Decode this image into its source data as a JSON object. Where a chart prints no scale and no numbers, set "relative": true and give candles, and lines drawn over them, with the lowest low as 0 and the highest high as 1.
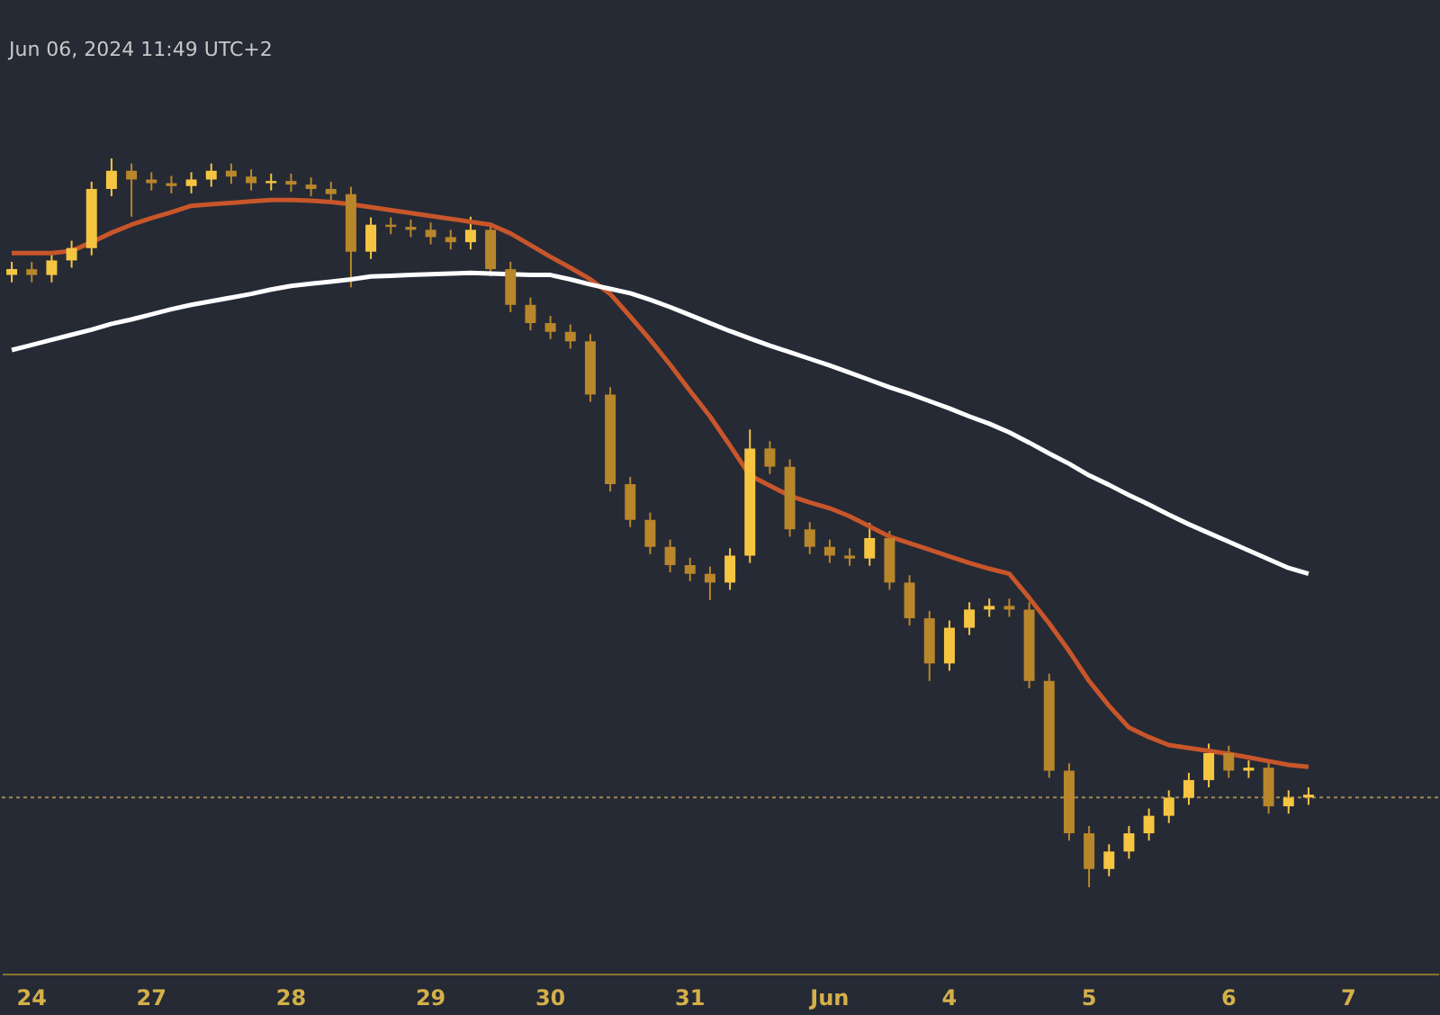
{
  "chart_data": {
    "type": "candlestick",
    "relative": true,
    "colors": [
      "#f5c542",
      "#b8862b",
      "#f5c542",
      "#f5c542",
      "#f5c542",
      "#f5c542",
      "#b8862b",
      "#b8862b",
      "#b8862b",
      "#f5c542",
      "#f5c542",
      "#b8862b",
      "#b8862b",
      "#f5c542",
      "#b8862b",
      "#b8862b",
      "#b8862b",
      "#b8862b",
      "#f5c542",
      "#b8862b",
      "#b8862b",
      "#b8862b",
      "#b8862b",
      "#f5c542",
      "#b8862b",
      "#b8862b",
      "#b8862b",
      "#b8862b",
      "#b8862b",
      "#b8862b",
      "#b8862b",
      "#b8862b",
      "#b8862b",
      "#b8862b",
      "#b8862b",
      "#b8862b",
      "#f5c542",
      "#f5c542",
      "#b8862b",
      "#b8862b",
      "#b8862b",
      "#b8862b",
      "#b8862b",
      "#f5c542",
      "#b8862b",
      "#b8862b",
      "#b8862b",
      "#f5c542",
      "#f5c542",
      "#f5c542",
      "#b8862b",
      "#b8862b",
      "#b8862b",
      "#b8862b",
      "#b8862b",
      "#f5c542",
      "#f5c542",
      "#f5c542",
      "#f5c542",
      "#f5c542",
      "#f5c542",
      "#b8862b",
      "#f5c542",
      "#b8862b",
      "#f5c542",
      "#f5c542",
      null,
      null,
      null,
      null,
      null,
      null
    ],
    "annotations": [
      "Jun 06, 2024 11:49 UTC+2"
    ],
    "categories": [
      null,
      "24",
      null,
      null,
      null,
      null,
      null,
      "27",
      null,
      null,
      null,
      null,
      null,
      null,
      "28",
      null,
      null,
      null,
      null,
      null,
      null,
      "29",
      null,
      null,
      null,
      null,
      null,
      "30",
      null,
      null,
      null,
      null,
      null,
      null,
      "31",
      null,
      null,
      null,
      null,
      null,
      null,
      "Jun",
      null,
      null,
      null,
      null,
      null,
      "4",
      null,
      null,
      null,
      null,
      null,
      null,
      "5",
      null,
      null,
      null,
      null,
      null,
      null,
      "6",
      null,
      null,
      null,
      null,
      null,
      "7",
      null,
      null,
      null,
      null
    ],
    "ohlc": [
      [
        0.84,
        0.858,
        0.83,
        0.848
      ],
      [
        0.848,
        0.858,
        0.83,
        0.84
      ],
      [
        0.84,
        0.87,
        0.83,
        0.86
      ],
      [
        0.86,
        0.887,
        0.85,
        0.877
      ],
      [
        0.877,
        0.968,
        0.867,
        0.958
      ],
      [
        0.958,
        1.0,
        0.948,
        0.983
      ],
      [
        0.983,
        0.993,
        0.92,
        0.971
      ],
      [
        0.971,
        0.981,
        0.956,
        0.966
      ],
      [
        0.966,
        0.976,
        0.952,
        0.962
      ],
      [
        0.962,
        0.981,
        0.952,
        0.971
      ],
      [
        0.971,
        0.993,
        0.961,
        0.983
      ],
      [
        0.983,
        0.993,
        0.965,
        0.975
      ],
      [
        0.975,
        0.985,
        0.956,
        0.966
      ],
      [
        0.966,
        0.979,
        0.956,
        0.969
      ],
      [
        0.969,
        0.979,
        0.954,
        0.964
      ],
      [
        0.964,
        0.974,
        0.948,
        0.958
      ],
      [
        0.958,
        0.968,
        0.941,
        0.951
      ],
      [
        0.951,
        0.961,
        0.823,
        0.872
      ],
      [
        0.872,
        0.919,
        0.862,
        0.909
      ],
      [
        0.909,
        0.919,
        0.896,
        0.906
      ],
      [
        0.906,
        0.916,
        0.892,
        0.902
      ],
      [
        0.902,
        0.912,
        0.882,
        0.892
      ],
      [
        0.892,
        0.902,
        0.875,
        0.885
      ],
      [
        0.885,
        0.92,
        0.875,
        0.902
      ],
      [
        0.902,
        0.912,
        0.838,
        0.848
      ],
      [
        0.848,
        0.858,
        0.789,
        0.799
      ],
      [
        0.799,
        0.809,
        0.764,
        0.774
      ],
      [
        0.774,
        0.784,
        0.752,
        0.762
      ],
      [
        0.762,
        0.772,
        0.739,
        0.749
      ],
      [
        0.749,
        0.759,
        0.666,
        0.676
      ],
      [
        0.676,
        0.686,
        0.543,
        0.553
      ],
      [
        0.553,
        0.563,
        0.494,
        0.504
      ],
      [
        0.504,
        0.514,
        0.457,
        0.467
      ],
      [
        0.467,
        0.477,
        0.432,
        0.442
      ],
      [
        0.442,
        0.452,
        0.42,
        0.43
      ],
      [
        0.43,
        0.44,
        0.394,
        0.418
      ],
      [
        0.418,
        0.465,
        0.408,
        0.455
      ],
      [
        0.455,
        0.628,
        0.445,
        0.602
      ],
      [
        0.602,
        0.612,
        0.567,
        0.577
      ],
      [
        0.577,
        0.587,
        0.481,
        0.491
      ],
      [
        0.491,
        0.501,
        0.457,
        0.467
      ],
      [
        0.467,
        0.477,
        0.445,
        0.455
      ],
      [
        0.455,
        0.465,
        0.441,
        0.451
      ],
      [
        0.451,
        0.5,
        0.441,
        0.479
      ],
      [
        0.479,
        0.489,
        0.408,
        0.418
      ],
      [
        0.418,
        0.428,
        0.359,
        0.369
      ],
      [
        0.369,
        0.379,
        0.283,
        0.307
      ],
      [
        0.307,
        0.366,
        0.297,
        0.356
      ],
      [
        0.356,
        0.391,
        0.346,
        0.381
      ],
      [
        0.381,
        0.396,
        0.371,
        0.386
      ],
      [
        0.386,
        0.396,
        0.371,
        0.381
      ],
      [
        0.381,
        0.391,
        0.273,
        0.283
      ],
      [
        0.283,
        0.293,
        0.15,
        0.16
      ],
      [
        0.16,
        0.17,
        0.064,
        0.074
      ],
      [
        0.074,
        0.084,
        0.0,
        0.025
      ],
      [
        0.025,
        0.059,
        0.015,
        0.049
      ],
      [
        0.049,
        0.084,
        0.039,
        0.074
      ],
      [
        0.074,
        0.108,
        0.064,
        0.098
      ],
      [
        0.098,
        0.133,
        0.088,
        0.123
      ],
      [
        0.123,
        0.157,
        0.113,
        0.147
      ],
      [
        0.147,
        0.197,
        0.137,
        0.184
      ],
      [
        0.184,
        0.194,
        0.15,
        0.16
      ],
      [
        0.16,
        0.174,
        0.15,
        0.164
      ],
      [
        0.164,
        0.174,
        0.101,
        0.111
      ],
      [
        0.111,
        0.133,
        0.101,
        0.123
      ],
      [
        0.123,
        0.137,
        0.113,
        0.127
      ],
      null,
      null,
      null,
      null,
      null,
      null
    ],
    "series": [
      {
        "type": "line",
        "color": "#c8562a",
        "values": [
          0.87,
          0.87,
          0.87,
          0.873,
          0.885,
          0.898,
          0.909,
          0.918,
          0.926,
          0.935,
          0.937,
          0.939,
          0.941,
          0.943,
          0.943,
          0.942,
          0.94,
          0.937,
          0.933,
          0.929,
          0.925,
          0.921,
          0.917,
          0.913,
          0.909,
          0.897,
          0.881,
          0.865,
          0.85,
          0.834,
          0.814,
          0.783,
          0.751,
          0.717,
          0.681,
          0.646,
          0.606,
          0.565,
          0.551,
          0.537,
          0.528,
          0.52,
          0.509,
          0.495,
          0.481,
          0.472,
          0.463,
          0.454,
          0.445,
          0.437,
          0.43,
          0.397,
          0.362,
          0.324,
          0.283,
          0.249,
          0.219,
          0.206,
          0.195,
          0.191,
          0.187,
          0.183,
          0.178,
          0.173,
          0.168,
          0.165,
          null,
          null,
          null,
          null,
          null,
          null
        ]
      },
      {
        "type": "line",
        "color": "#ffffff",
        "values": [
          0.737,
          0.744,
          0.751,
          0.758,
          0.765,
          0.773,
          0.779,
          0.786,
          0.793,
          0.799,
          0.804,
          0.809,
          0.814,
          0.82,
          0.825,
          0.828,
          0.831,
          0.834,
          0.838,
          0.839,
          0.84,
          0.841,
          0.842,
          0.843,
          0.842,
          0.841,
          0.84,
          0.84,
          0.834,
          0.827,
          0.821,
          0.815,
          0.806,
          0.796,
          0.785,
          0.774,
          0.763,
          0.753,
          0.743,
          0.734,
          0.725,
          0.716,
          0.706,
          0.696,
          0.686,
          0.677,
          0.667,
          0.657,
          0.646,
          0.636,
          0.624,
          0.61,
          0.595,
          0.581,
          0.565,
          0.552,
          0.538,
          0.525,
          0.511,
          0.498,
          0.486,
          0.474,
          0.462,
          0.45,
          0.438,
          0.43,
          null,
          null,
          null,
          null,
          null,
          null
        ]
      }
    ],
    "ref_lines": [
      {
        "axis": "y",
        "value": 0.123,
        "color": "#a08a50",
        "line_style": "dotted"
      }
    ],
    "grid": false
  }
}
